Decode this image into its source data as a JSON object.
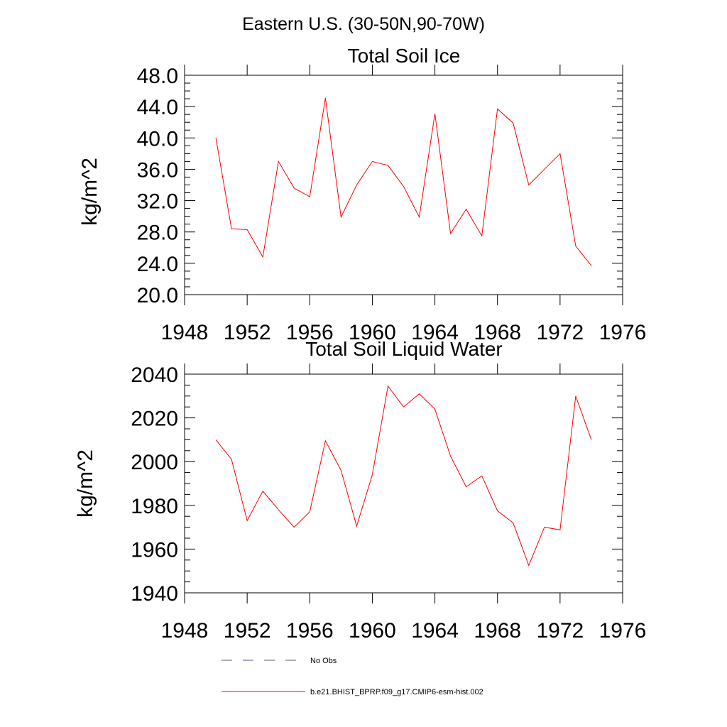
{
  "figure_title": "Eastern U.S. (30-50N,90-70W)",
  "chart_data": [
    {
      "type": "line",
      "title": "Total Soil Ice",
      "ylabel": "kg/m^2",
      "xlabel": "",
      "xlim": [
        1948,
        1976
      ],
      "ylim": [
        20,
        48
      ],
      "x_ticks": [
        1948,
        1952,
        1956,
        1960,
        1964,
        1968,
        1972,
        1976
      ],
      "x_tick_labels": [
        "1948",
        "1952",
        "1956",
        "1960",
        "1964",
        "1968",
        "1972",
        "1976"
      ],
      "y_ticks": [
        20,
        24,
        28,
        32,
        36,
        40,
        44,
        48
      ],
      "y_tick_labels": [
        "20.0",
        "24.0",
        "28.0",
        "32.0",
        "36.0",
        "40.0",
        "44.0",
        "48.0"
      ],
      "series": [
        {
          "name": "b.e21.BHIST_BPRP.f09_g17.CMIP6-esm-hist.002",
          "color": "#ff0000",
          "x": [
            1950,
            1951,
            1952,
            1953,
            1954,
            1955,
            1956,
            1957,
            1958,
            1959,
            1960,
            1961,
            1962,
            1963,
            1964,
            1965,
            1966,
            1967,
            1968,
            1969,
            1970,
            1971,
            1972,
            1973,
            1974
          ],
          "y": [
            40.0,
            28.4,
            28.3,
            24.8,
            37.0,
            33.6,
            32.5,
            45.1,
            29.9,
            34.0,
            37.0,
            36.5,
            33.8,
            29.9,
            43.1,
            27.8,
            30.9,
            27.5,
            43.7,
            41.9,
            34.0,
            36.0,
            38.0,
            26.2,
            23.7
          ]
        }
      ]
    },
    {
      "type": "line",
      "title": "Total Soil Liquid Water",
      "ylabel": "kg/m^2",
      "xlabel": "",
      "xlim": [
        1948,
        1976
      ],
      "ylim": [
        1940,
        2040
      ],
      "x_ticks": [
        1948,
        1952,
        1956,
        1960,
        1964,
        1968,
        1972,
        1976
      ],
      "x_tick_labels": [
        "1948",
        "1952",
        "1956",
        "1960",
        "1964",
        "1968",
        "1972",
        "1976"
      ],
      "y_ticks": [
        1940,
        1960,
        1980,
        2000,
        2020,
        2040
      ],
      "y_tick_labels": [
        "1940",
        "1960",
        "1980",
        "2000",
        "2020",
        "2040"
      ],
      "series": [
        {
          "name": "b.e21.BHIST_BPRP.f09_g17.CMIP6-esm-hist.002",
          "color": "#ff0000",
          "x": [
            1950,
            1951,
            1952,
            1953,
            1954,
            1955,
            1956,
            1957,
            1958,
            1959,
            1960,
            1961,
            1962,
            1963,
            1964,
            1965,
            1966,
            1967,
            1968,
            1969,
            1970,
            1971,
            1972,
            1973,
            1974
          ],
          "y": [
            2010,
            2001,
            1973,
            1986.5,
            1978,
            1970,
            1977,
            2009.5,
            1996,
            1970.5,
            1994,
            2034.5,
            2025,
            2031,
            2024,
            2002.5,
            1988.5,
            1993.5,
            1977.5,
            1972,
            1952.5,
            1970,
            1968.8,
            2030,
            2010
          ]
        }
      ]
    }
  ],
  "legend": [
    {
      "label": "No Obs",
      "color": "#4a5a8a",
      "style": "dashed"
    },
    {
      "label": "b.e21.BHIST_BPRP.f09_g17.CMIP6-esm-hist.002",
      "color": "#ff0000",
      "style": "solid"
    }
  ]
}
